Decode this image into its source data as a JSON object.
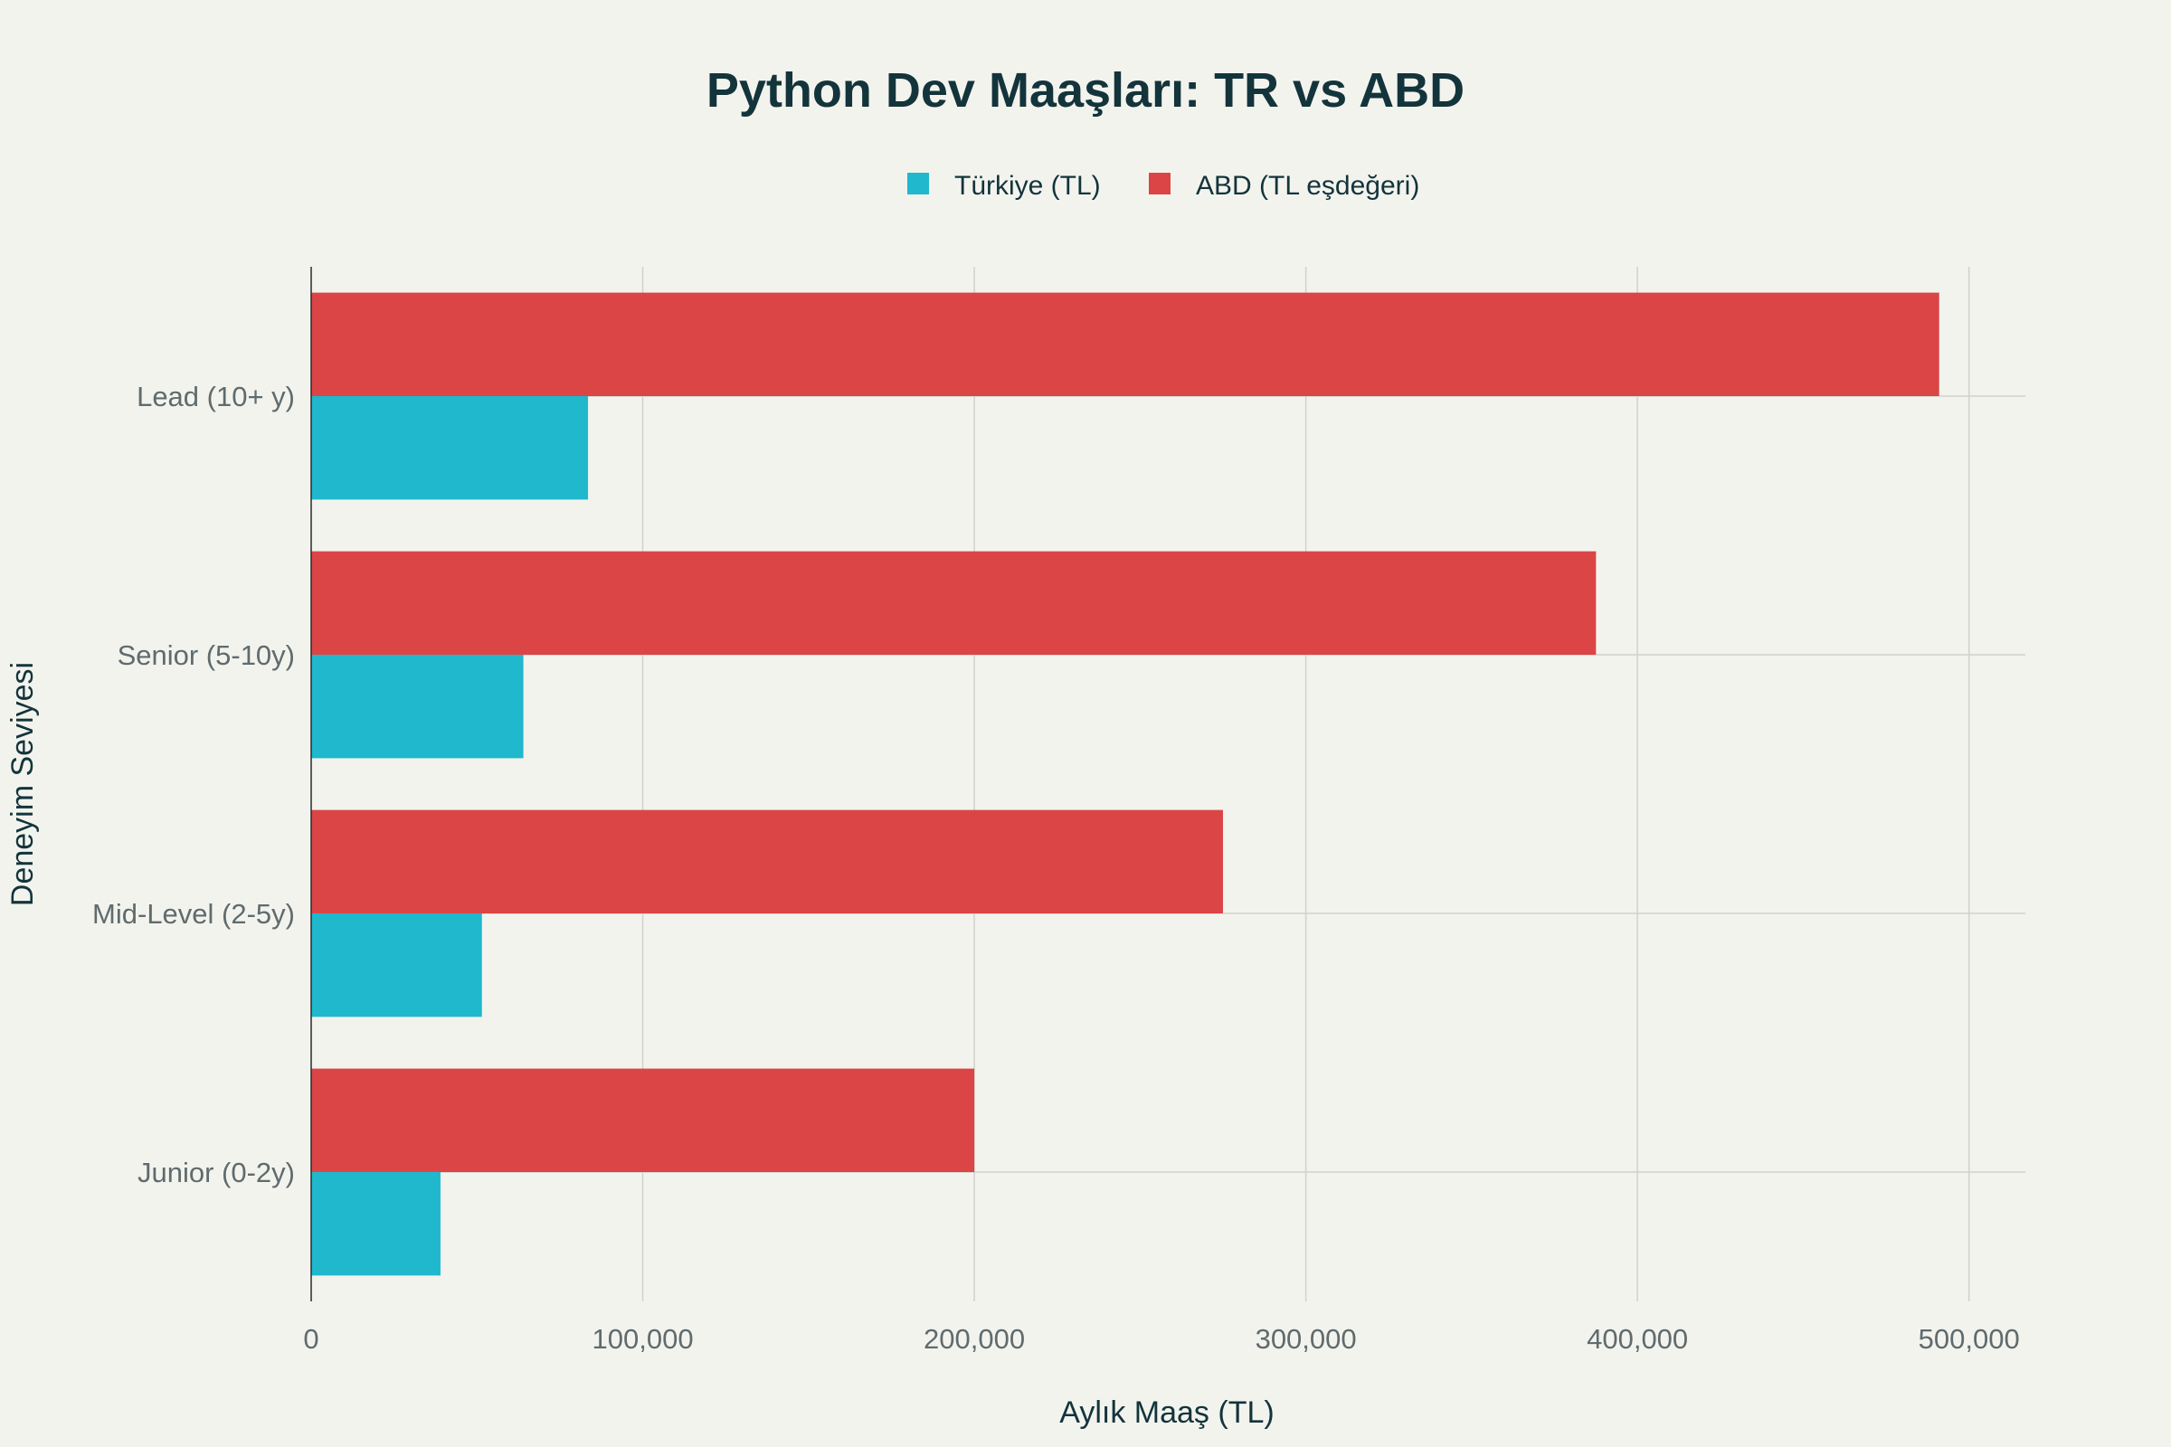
{
  "chart_data": {
    "type": "bar",
    "orientation": "horizontal",
    "title": "Python Dev Maaşları: TR vs ABD",
    "xlabel": "Aylık Maaş (TL)",
    "ylabel": "Deneyim Seviyesi",
    "categories": [
      "Junior (0-2y)",
      "Mid-Level (2-5y)",
      "Senior (5-10y)",
      "Lead (10+ y)"
    ],
    "series": [
      {
        "name": "Türkiye (TL)",
        "color": "#1fb8cd",
        "values": [
          39000,
          51500,
          64000,
          83500
        ]
      },
      {
        "name": "ABD (TL eşdeğeri)",
        "color": "#db4545",
        "values": [
          200000,
          275000,
          387500,
          491000
        ]
      }
    ],
    "xlim": [
      0,
      517000
    ],
    "xticks": [
      0,
      100000,
      200000,
      300000,
      400000,
      500000
    ],
    "xtick_labels": [
      "0",
      "100,000",
      "200,000",
      "300,000",
      "400,000",
      "500,000"
    ],
    "grid": true,
    "legend_position": "top-center",
    "background": "#f3f3ee"
  }
}
